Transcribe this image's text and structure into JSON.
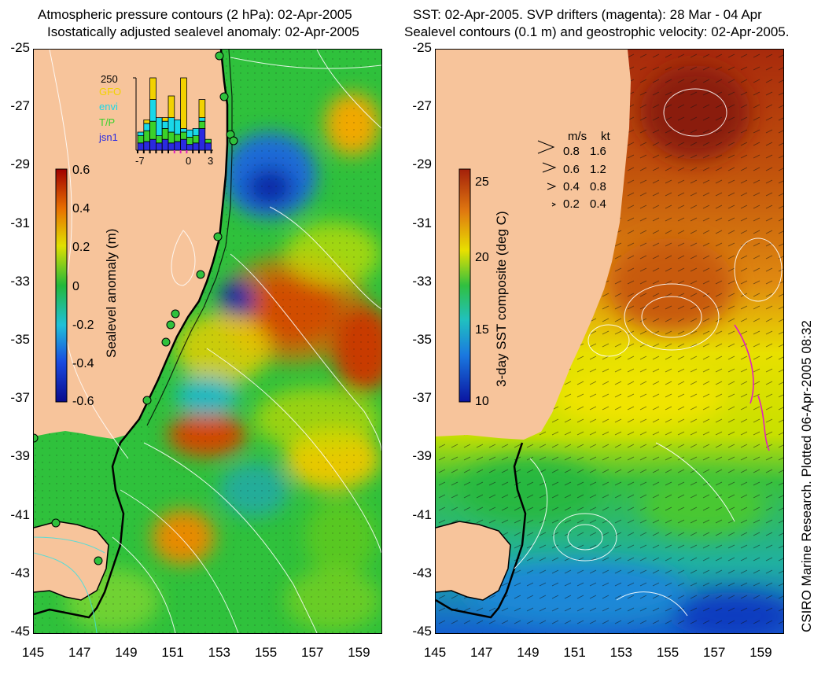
{
  "left_panel": {
    "title_line1": "Atmospheric pressure contours (2 hPa): 02-Apr-2005",
    "title_line2": "Isostatically adjusted sealevel anomaly: 02-Apr-2005",
    "colorbar_label": "Sealevel anomaly (m)",
    "colorbar_ticks": [
      "0.6",
      "0.4",
      "0.2",
      "0",
      "-0.2",
      "-0.4",
      "-0.6"
    ],
    "colorbar_range": [
      -0.6,
      0.6
    ],
    "histogram": {
      "max_label": "250",
      "x_ticks": [
        "-7",
        "0",
        "3"
      ],
      "legend": [
        {
          "name": "GFO",
          "color": "#f2d200"
        },
        {
          "name": "envi",
          "color": "#19d8e8"
        },
        {
          "name": "T/P",
          "color": "#3ad22a"
        },
        {
          "name": "jsn1",
          "color": "#2a2ae0"
        }
      ]
    }
  },
  "right_panel": {
    "title_line1": "SST: 02-Apr-2005. SVP drifters (magenta): 28 Mar - 04 Apr",
    "title_line2": "Sealevel contours (0.1 m) and geostrophic velocity: 02-Apr-2005.",
    "colorbar_label": "3-day SST composite (deg C)",
    "colorbar_ticks": [
      "25",
      "20",
      "15",
      "10"
    ],
    "colorbar_range": [
      10,
      26
    ],
    "speed_legend": {
      "header_ms": "m/s",
      "header_kt": "kt",
      "rows": [
        {
          "ms": "0.8",
          "kt": "1.6"
        },
        {
          "ms": "0.6",
          "kt": "1.2"
        },
        {
          "ms": "0.4",
          "kt": "0.8"
        },
        {
          "ms": "0.2",
          "kt": "0.4"
        }
      ]
    }
  },
  "axes": {
    "y_ticks": [
      "-25",
      "-27",
      "-29",
      "-31",
      "-33",
      "-35",
      "-37",
      "-39",
      "-41",
      "-43",
      "-45"
    ],
    "x_ticks": [
      "145",
      "147",
      "149",
      "151",
      "153",
      "155",
      "157",
      "159"
    ]
  },
  "credit": "CSIRO Marine Research. Plotted 06-Apr-2005 08:32",
  "colors": {
    "land": "#f7c49b",
    "sla_low": "#0a0a8c",
    "sla_zero": "#22b83a",
    "sla_high": "#a00000",
    "sst_high": "#a3200a",
    "sst_low": "#0a14a0"
  }
}
